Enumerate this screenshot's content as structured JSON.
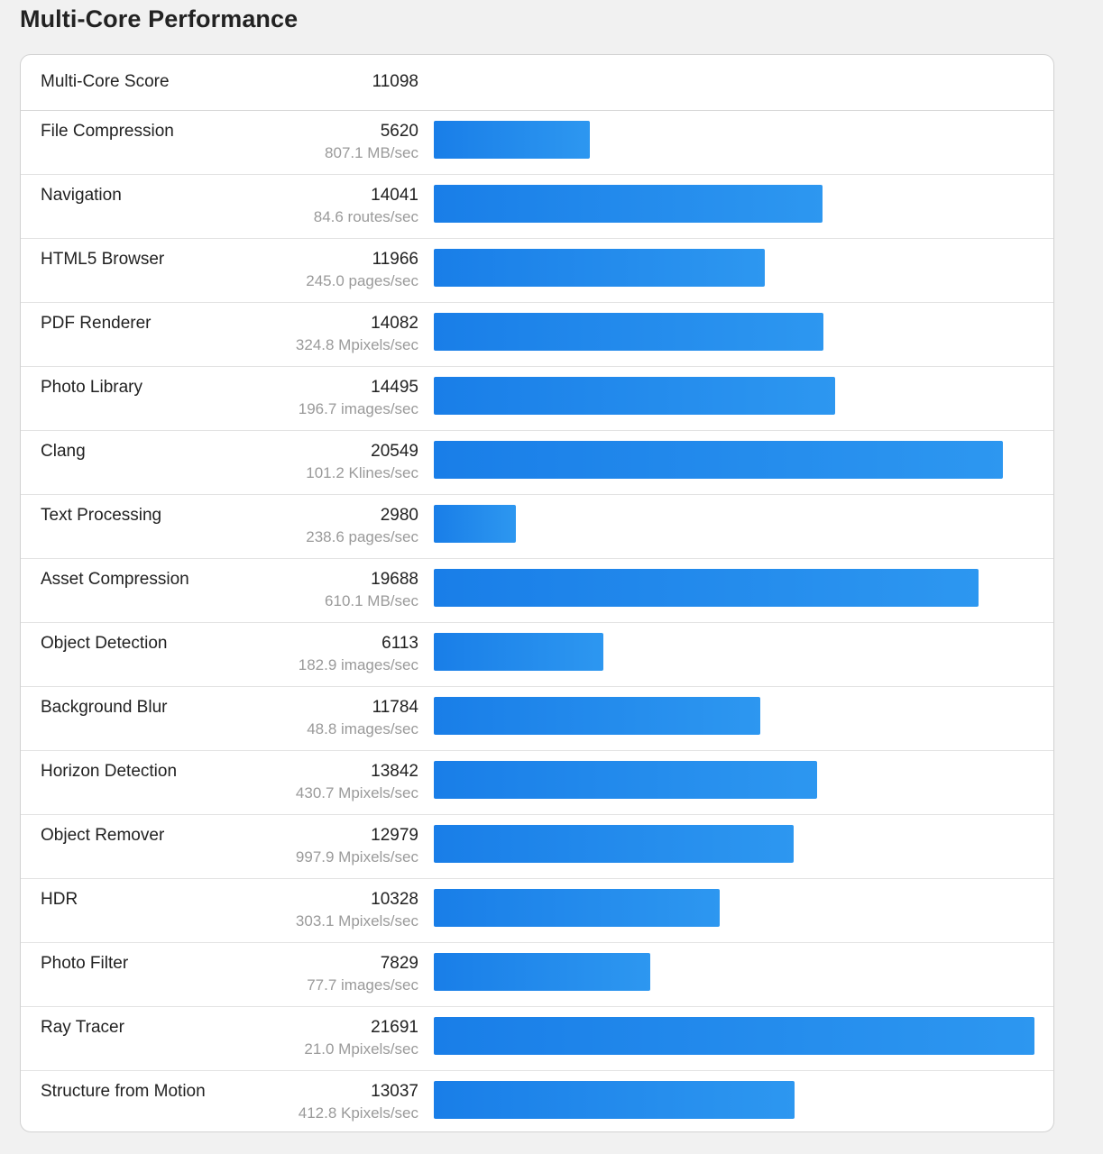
{
  "page": {
    "title": "Multi-Core Performance"
  },
  "summary": {
    "label": "Multi-Core Score",
    "score": "11098"
  },
  "colors": {
    "bar_start": "#197ee8",
    "bar_end": "#2d97f0"
  },
  "chart_data": {
    "type": "bar",
    "orientation": "horizontal",
    "categories": [
      "File Compression",
      "Navigation",
      "HTML5 Browser",
      "PDF Renderer",
      "Photo Library",
      "Clang",
      "Text Processing",
      "Asset Compression",
      "Object Detection",
      "Background Blur",
      "Horizon Detection",
      "Object Remover",
      "HDR",
      "Photo Filter",
      "Ray Tracer",
      "Structure from Motion"
    ],
    "values": [
      5620,
      14041,
      11966,
      14082,
      14495,
      20549,
      2980,
      19688,
      6113,
      11784,
      13842,
      12979,
      10328,
      7829,
      21691,
      13037
    ],
    "units": [
      "807.1 MB/sec",
      "84.6 routes/sec",
      "245.0 pages/sec",
      "324.8 Mpixels/sec",
      "196.7 images/sec",
      "101.2 Klines/sec",
      "238.6 pages/sec",
      "610.1 MB/sec",
      "182.9 images/sec",
      "48.8 images/sec",
      "430.7 Mpixels/sec",
      "997.9 Mpixels/sec",
      "303.1 Mpixels/sec",
      "77.7 images/sec",
      "21.0 Mpixels/sec",
      "412.8 Kpixels/sec"
    ],
    "xlim": [
      0,
      21691
    ]
  }
}
